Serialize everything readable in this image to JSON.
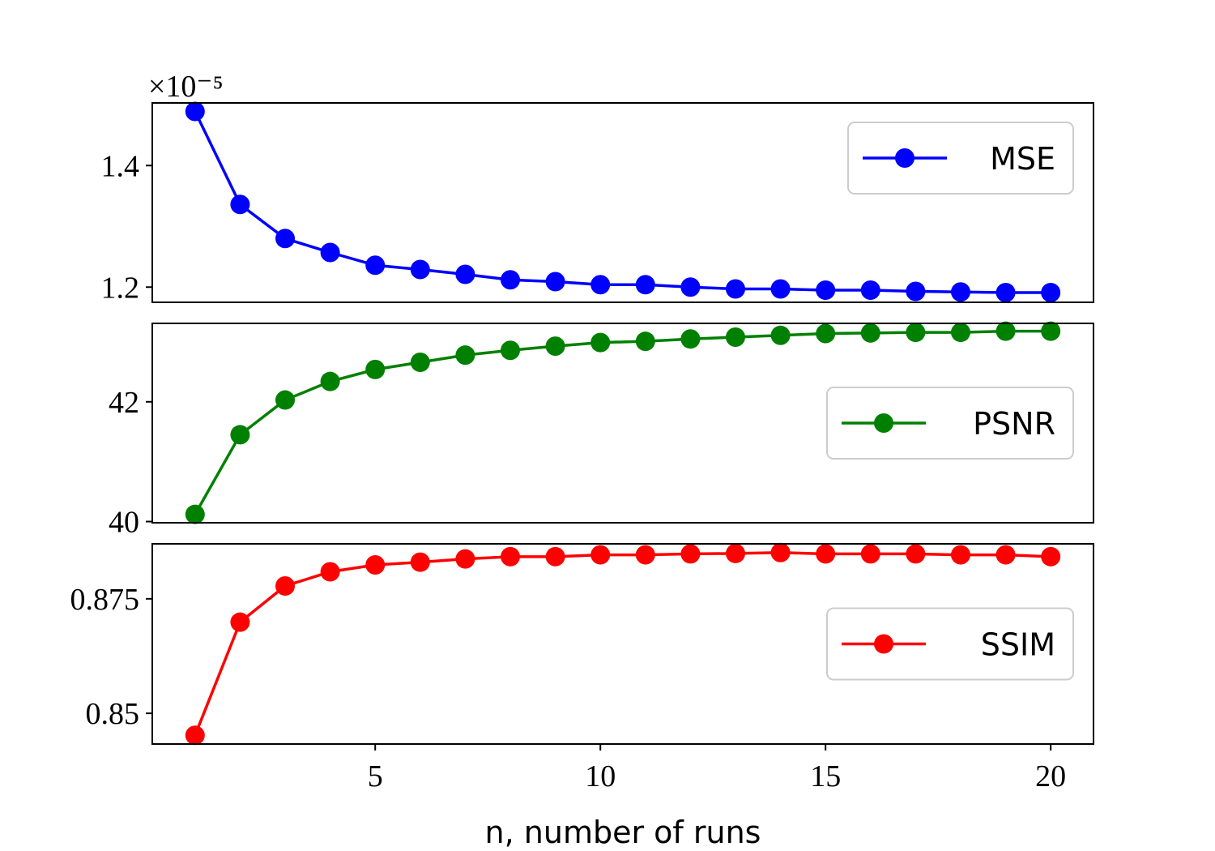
{
  "chart_data": [
    {
      "type": "line",
      "offset_text": "×10⁻⁵",
      "x": [
        1,
        2,
        3,
        4,
        5,
        6,
        7,
        8,
        9,
        10,
        11,
        12,
        13,
        14,
        15,
        16,
        17,
        18,
        19,
        20
      ],
      "series": [
        {
          "name": "MSE",
          "color": "#0000ff",
          "values": [
            1.489,
            1.336,
            1.28,
            1.257,
            1.236,
            1.229,
            1.221,
            1.212,
            1.209,
            1.204,
            1.204,
            1.2,
            1.197,
            1.197,
            1.195,
            1.195,
            1.193,
            1.192,
            1.191,
            1.191
          ]
        }
      ],
      "xlim": [
        0.05,
        20.95
      ],
      "ylim": [
        1.175,
        1.503
      ],
      "yticks": [
        1.2,
        1.4
      ],
      "legend": "upper right"
    },
    {
      "type": "line",
      "x": [
        1,
        2,
        3,
        4,
        5,
        6,
        7,
        8,
        9,
        10,
        11,
        12,
        13,
        14,
        15,
        16,
        17,
        18,
        19,
        20
      ],
      "series": [
        {
          "name": "PSNR",
          "color": "#008000",
          "values": [
            40.12,
            41.45,
            42.03,
            42.34,
            42.54,
            42.66,
            42.78,
            42.86,
            42.93,
            42.99,
            43.01,
            43.05,
            43.08,
            43.11,
            43.14,
            43.15,
            43.16,
            43.16,
            43.18,
            43.18
          ]
        }
      ],
      "xlim": [
        0.05,
        20.95
      ],
      "ylim": [
        39.98,
        43.31
      ],
      "yticks": [
        40,
        42
      ],
      "legend": "center right"
    },
    {
      "type": "line",
      "x": [
        1,
        2,
        3,
        4,
        5,
        6,
        7,
        8,
        9,
        10,
        11,
        12,
        13,
        14,
        15,
        16,
        17,
        18,
        19,
        20
      ],
      "series": [
        {
          "name": "SSIM",
          "color": "#ff0000",
          "values": [
            0.8452,
            0.8699,
            0.8778,
            0.8809,
            0.8824,
            0.883,
            0.8837,
            0.8842,
            0.8842,
            0.8846,
            0.8846,
            0.8848,
            0.8849,
            0.8851,
            0.8848,
            0.8848,
            0.8848,
            0.8846,
            0.8846,
            0.8842
          ]
        }
      ],
      "xlim": [
        0.05,
        20.95
      ],
      "ylim": [
        0.8433,
        0.887
      ],
      "yticks": [
        0.85,
        0.875
      ],
      "xticks": [
        5,
        10,
        15,
        20
      ],
      "xlabel": "n, number of runs",
      "legend": "center right"
    }
  ]
}
